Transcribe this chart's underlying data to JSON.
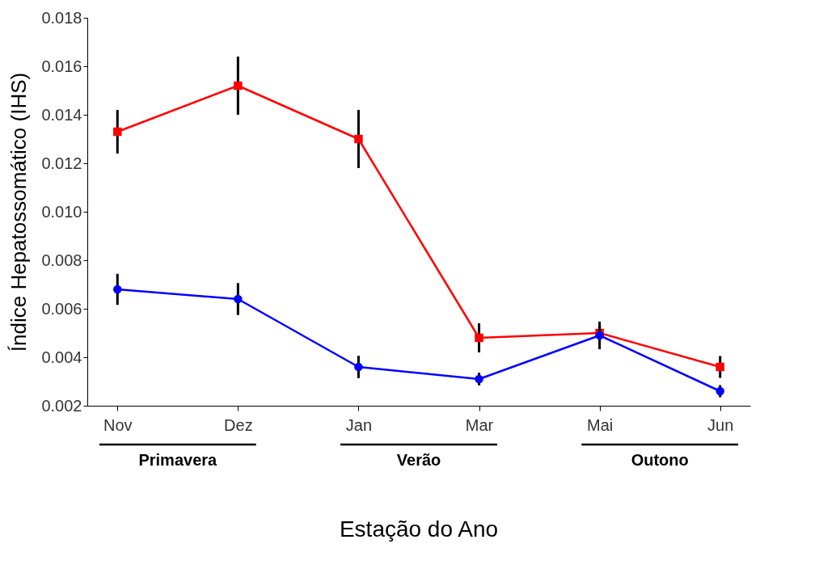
{
  "chart_data": {
    "type": "line",
    "xlabel": "Estação do Ano",
    "ylabel": "Índice Hepatossomático (IHS)",
    "categories": [
      "Nov",
      "Dez",
      "Jan",
      "Mar",
      "Mai",
      "Jun"
    ],
    "series": [
      {
        "color": "#ff0000",
        "marker": "square",
        "values": [
          0.0133,
          0.0152,
          0.013,
          0.0048,
          0.005,
          0.0036
        ],
        "errors": [
          0.0009,
          0.0012,
          0.0012,
          0.0006,
          0.0003,
          0.00045
        ]
      },
      {
        "color": "#0000ff",
        "marker": "circle",
        "values": [
          0.0068,
          0.0064,
          0.0036,
          0.0031,
          0.0049,
          0.0026
        ],
        "errors": [
          0.00064,
          0.00066,
          0.00046,
          0.00026,
          0.00057,
          0.00025
        ]
      }
    ],
    "ylim": [
      0.002,
      0.018
    ],
    "yticks": [
      0.002,
      0.004,
      0.006,
      0.008,
      {
        "value": 0.01,
        "label": "0.010"
      },
      0.012,
      0.014,
      0.016,
      0.018
    ],
    "annotations": [
      "Primavera",
      "Verão",
      "Outono"
    ],
    "grid": false,
    "legend": false,
    "line_style": "solid"
  }
}
